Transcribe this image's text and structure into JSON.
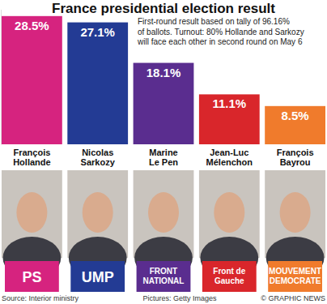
{
  "chart_data": {
    "type": "bar",
    "title": "France presidential election result",
    "subtitle": [
      "First-round result based on tally of 96.16%",
      "of ballots. Turnout: 80% Hollande and Sarkozy",
      "will face each other in second round on May 6"
    ],
    "categories": [
      "François Hollande",
      "Nicolas Sarkozy",
      "Marine Le Pen",
      "Jean-Luc Mélenchon",
      "François Bayrou"
    ],
    "values": [
      28.5,
      27.1,
      18.1,
      11.1,
      8.5
    ],
    "value_labels": [
      "28.5%",
      "27.1%",
      "18.1%",
      "11.1%",
      "8.5%"
    ],
    "colors": [
      "#d6237f",
      "#233b94",
      "#5a2d8f",
      "#d9262b",
      "#f07b2c"
    ],
    "party_logos": [
      "PS",
      "UMP",
      "FRONT NATIONAL",
      "Front de Gauche",
      "MOUVEMENT DEMOCRATE"
    ],
    "annotations": [
      "Source: Interior ministry",
      "Pictures: Getty Images",
      "© GRAPHIC NEWS"
    ],
    "ylim": [
      0,
      30
    ],
    "yticks": [],
    "tick_labels": false,
    "data_labels": true
  }
}
